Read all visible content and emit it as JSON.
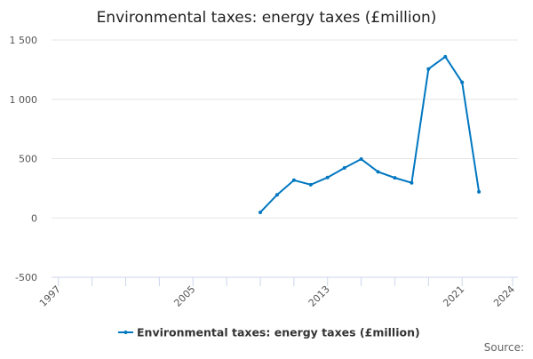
{
  "chart_data": {
    "type": "line",
    "title": "Environmental taxes: energy taxes (£million)",
    "xlabel": "",
    "ylabel": "",
    "xlim": [
      1997,
      2024
    ],
    "ylim": [
      -500,
      1500
    ],
    "x_tick_labels": [
      "1997",
      "2005",
      "2013",
      "2021",
      "2024"
    ],
    "y_ticks": [
      -500,
      0,
      500,
      1000,
      1500
    ],
    "y_tick_labels": [
      "-500",
      "0",
      "500",
      "1 000",
      "1 500"
    ],
    "grid": true,
    "legend_position": "bottom",
    "series": [
      {
        "name": "Environmental taxes: energy taxes (£million)",
        "color": "#0077c0",
        "x": [
          2009,
          2010,
          2011,
          2012,
          2013,
          2014,
          2015,
          2016,
          2017,
          2018,
          2019,
          2020,
          2021,
          2022
        ],
        "values": [
          47,
          195,
          318,
          280,
          341,
          421,
          496,
          389,
          338,
          296,
          1256,
          1359,
          1143,
          220
        ]
      }
    ]
  },
  "source_label": "Source:"
}
